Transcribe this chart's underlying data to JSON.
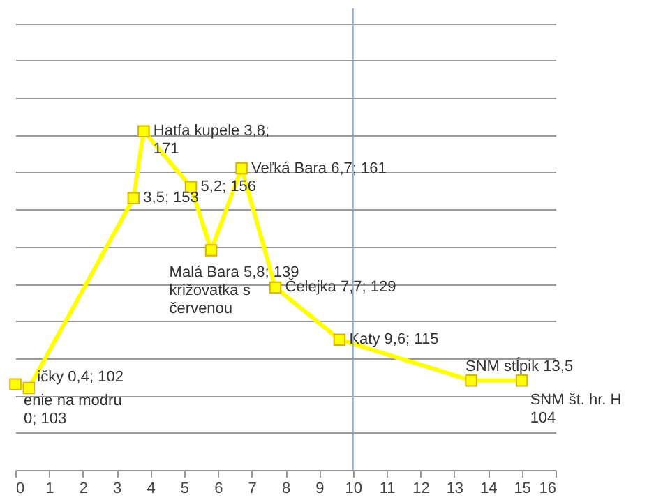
{
  "chart_data": {
    "type": "line",
    "x": [
      0,
      0.4,
      3.5,
      3.8,
      5.2,
      5.8,
      6.7,
      7.7,
      9.6,
      13.5,
      15
    ],
    "series": [
      {
        "color": "#ffff00",
        "values": [
          103,
          102,
          153,
          171,
          156,
          139,
          161,
          129,
          115,
          104,
          104
        ],
        "value_labels": [
          "enie na modru\n0; 103",
          "ičky 0,4; 102",
          "3,5; 153",
          "Hatfa kupele 3,8;\n171",
          "5,2; 156",
          "Malá Bara 5,8; 139\nkrižovatka s\nčervenou",
          "Veľká Bara 6,7; 161",
          "Čelejka 7,7; 129",
          "Katy 9,6; 115",
          "SNM stĺpik 13,5",
          "SNM št. hr. H\n104"
        ]
      }
    ],
    "xlim": [
      0,
      16
    ],
    "xticks": [
      0,
      1,
      2,
      3,
      4,
      5,
      6,
      7,
      8,
      9,
      10,
      11,
      12,
      13,
      14,
      15,
      16
    ],
    "ylim": [
      80,
      204
    ],
    "yticks": [
      {
        "value": 80,
        "label": null
      },
      {
        "value": 90,
        "label": null
      },
      {
        "value": 100,
        "label": null
      },
      {
        "value": 110,
        "label": null
      },
      {
        "value": 120,
        "label": null
      },
      {
        "value": 130,
        "label": null
      },
      {
        "value": 140,
        "label": null
      },
      {
        "value": 150,
        "label": null
      },
      {
        "value": 160,
        "label": null
      },
      {
        "value": 170,
        "label": null
      },
      {
        "value": 180,
        "label": null
      },
      {
        "value": 190,
        "label": null
      },
      {
        "value": 200,
        "label": null
      }
    ],
    "tick_labels": "x",
    "grid": "y",
    "marker": "square",
    "line_style": "solid",
    "ref_lines": [
      {
        "axis": "x",
        "value": 10,
        "color": "#8fa9d6"
      }
    ]
  }
}
